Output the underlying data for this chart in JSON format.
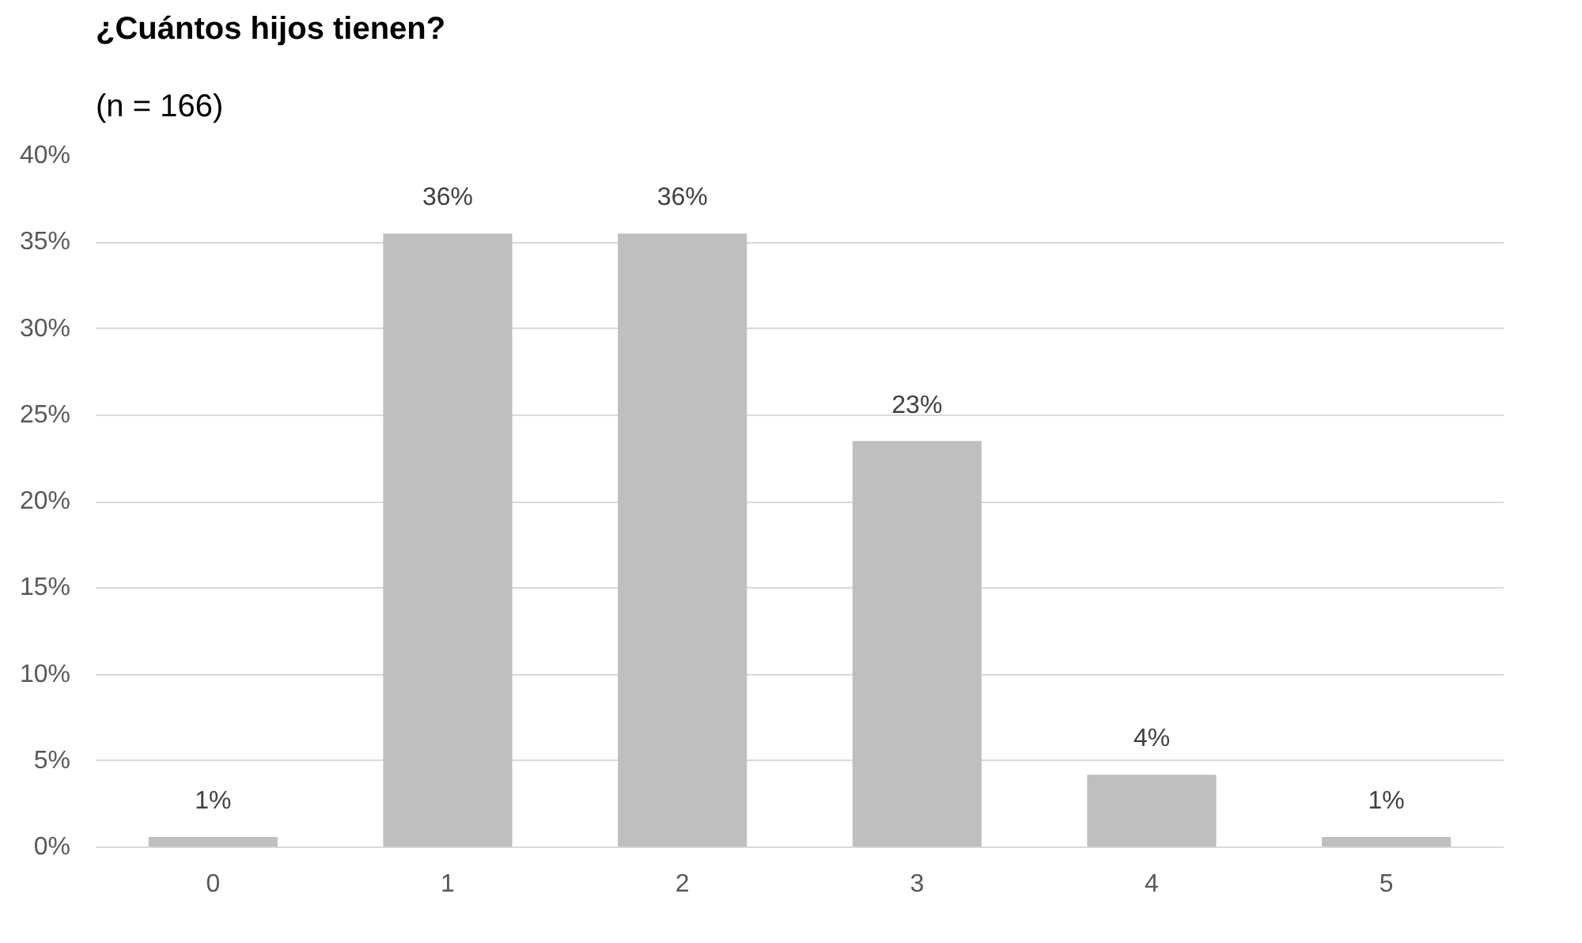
{
  "chart_data": {
    "type": "bar",
    "title": "¿Cuántos hijos tienen?",
    "subtitle": "(n = 166)",
    "categories": [
      "0",
      "1",
      "2",
      "3",
      "4",
      "5"
    ],
    "values": [
      0.6,
      35.5,
      35.5,
      23.5,
      4.2,
      0.6
    ],
    "value_labels": [
      "1%",
      "36%",
      "36%",
      "23%",
      "4%",
      "1%"
    ],
    "color": "#bfbfbf",
    "ylim": [
      0,
      40
    ],
    "yticks": [
      {
        "value": 0,
        "label": "0%"
      },
      {
        "value": 5,
        "label": "5%"
      },
      {
        "value": 10,
        "label": "10%"
      },
      {
        "value": 15,
        "label": "15%"
      },
      {
        "value": 20,
        "label": "20%"
      },
      {
        "value": 25,
        "label": "25%"
      },
      {
        "value": 30,
        "label": "30%"
      },
      {
        "value": 35,
        "label": "35%"
      },
      {
        "value": 40,
        "label": "40%"
      }
    ],
    "grid": "y"
  }
}
